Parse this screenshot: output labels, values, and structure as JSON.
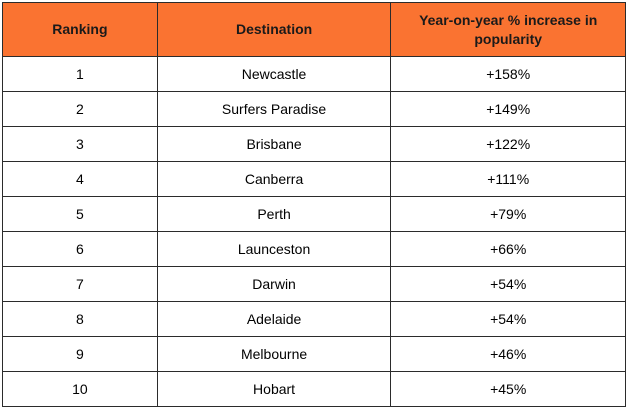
{
  "headers": {
    "ranking": "Ranking",
    "destination": "Destination",
    "increase": "Year-on-year % increase in popularity"
  },
  "rows": [
    {
      "ranking": "1",
      "destination": "Newcastle",
      "increase": "+158%"
    },
    {
      "ranking": "2",
      "destination": "Surfers Paradise",
      "increase": "+149%"
    },
    {
      "ranking": "3",
      "destination": "Brisbane",
      "increase": "+122%"
    },
    {
      "ranking": "4",
      "destination": "Canberra",
      "increase": "+111%"
    },
    {
      "ranking": "5",
      "destination": "Perth",
      "increase": "+79%"
    },
    {
      "ranking": "6",
      "destination": "Launceston",
      "increase": "+66%"
    },
    {
      "ranking": "7",
      "destination": "Darwin",
      "increase": "+54%"
    },
    {
      "ranking": "8",
      "destination": "Adelaide",
      "increase": "+54%"
    },
    {
      "ranking": "9",
      "destination": "Melbourne",
      "increase": "+46%"
    },
    {
      "ranking": "10",
      "destination": "Hobart",
      "increase": "+45%"
    }
  ],
  "colors": {
    "header_background": "#fa7331",
    "border": "#2b2b2b"
  }
}
